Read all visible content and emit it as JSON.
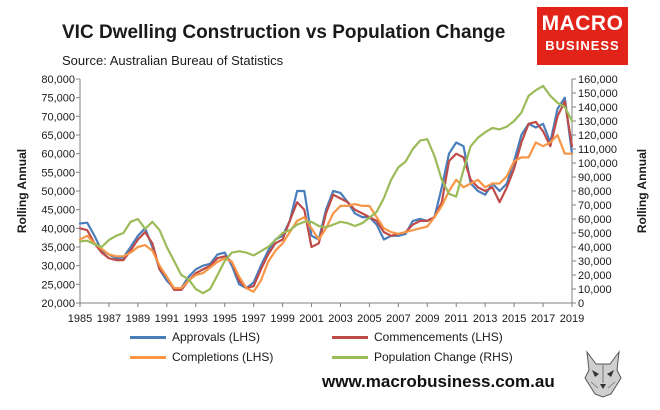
{
  "header": {
    "title": "VIC Dwelling Construction vs Population Change",
    "subtitle": "Source: Australian Bureau of Statistics"
  },
  "logo": {
    "line1": "MACRO",
    "line2": "BUSINESS",
    "color": "#e2231a"
  },
  "footer": {
    "website": "www.macrobusiness.com.au",
    "icon": "wolf-icon"
  },
  "chart_data": {
    "type": "line",
    "ylabel_left": "Rolling Annual",
    "ylabel_right": "Rolling Annual",
    "ylim_left": [
      20000,
      80000
    ],
    "ylim_right": [
      0,
      160000
    ],
    "yticks_left": [
      "20,000",
      "25,000",
      "30,000",
      "35,000",
      "40,000",
      "45,000",
      "50,000",
      "55,000",
      "60,000",
      "65,000",
      "70,000",
      "75,000",
      "80,000"
    ],
    "yticks_right": [
      "0",
      "10,000",
      "20,000",
      "30,000",
      "40,000",
      "50,000",
      "60,000",
      "70,000",
      "80,000",
      "90,000",
      "100,000",
      "110,000",
      "120,000",
      "130,000",
      "140,000",
      "150,000",
      "160,000"
    ],
    "xlim": [
      1985,
      2019
    ],
    "xticks": [
      "1985",
      "1987",
      "1989",
      "1991",
      "1993",
      "1995",
      "1997",
      "1999",
      "2001",
      "2003",
      "2005",
      "2007",
      "2009",
      "2011",
      "2013",
      "2015",
      "2017",
      "2019"
    ],
    "grid": false,
    "legend_position": "bottom",
    "series": [
      {
        "name": "Approvals (LHS)",
        "axis": "left",
        "color": "#4a7ebb",
        "x": [
          1985,
          1985.5,
          1986,
          1986.5,
          1987,
          1987.5,
          1988,
          1988.5,
          1989,
          1989.5,
          1990,
          1990.5,
          1991,
          1991.5,
          1992,
          1992.5,
          1993,
          1993.5,
          1994,
          1994.5,
          1995,
          1995.5,
          1996,
          1996.5,
          1997,
          1997.5,
          1998,
          1998.5,
          1999,
          1999.5,
          2000,
          2000.5,
          2001,
          2001.5,
          2002,
          2002.5,
          2003,
          2003.5,
          2004,
          2004.5,
          2005,
          2005.5,
          2006,
          2006.5,
          2007,
          2007.5,
          2008,
          2008.5,
          2009,
          2009.5,
          2010,
          2010.5,
          2011,
          2011.5,
          2012,
          2012.5,
          2013,
          2013.5,
          2014,
          2014.5,
          2015,
          2015.5,
          2016,
          2016.5,
          2017,
          2017.5,
          2018,
          2018.5,
          2019
        ],
        "values": [
          41300,
          41500,
          38000,
          34000,
          33000,
          32000,
          32200,
          35000,
          38000,
          40000,
          35000,
          29000,
          26000,
          24000,
          24000,
          27000,
          29000,
          30000,
          30500,
          33000,
          33500,
          30000,
          25000,
          24000,
          25500,
          30000,
          34000,
          37000,
          38000,
          42000,
          50000,
          50000,
          38000,
          37000,
          45000,
          50000,
          49500,
          47000,
          44000,
          43000,
          43000,
          41000,
          37000,
          38000,
          38000,
          38500,
          42000,
          42500,
          42000,
          43000,
          51000,
          60000,
          63000,
          62000,
          52000,
          50000,
          49000,
          52000,
          50000,
          52000,
          58000,
          65000,
          68000,
          67000,
          68000,
          63000,
          72000,
          75000,
          60000
        ]
      },
      {
        "name": "Commencements (LHS)",
        "axis": "left",
        "color": "#be4b48",
        "x": [
          1985,
          1985.5,
          1986,
          1986.5,
          1987,
          1987.5,
          1988,
          1988.5,
          1989,
          1989.5,
          1990,
          1990.5,
          1991,
          1991.5,
          1992,
          1992.5,
          1993,
          1993.5,
          1994,
          1994.5,
          1995,
          1995.5,
          1996,
          1996.5,
          1997,
          1997.5,
          1998,
          1998.5,
          1999,
          1999.5,
          2000,
          2000.5,
          2001,
          2001.5,
          2002,
          2002.5,
          2003,
          2003.5,
          2004,
          2004.5,
          2005,
          2005.5,
          2006,
          2006.5,
          2007,
          2007.5,
          2008,
          2008.5,
          2009,
          2009.5,
          2010,
          2010.5,
          2011,
          2011.5,
          2012,
          2012.5,
          2013,
          2013.5,
          2014,
          2014.5,
          2015,
          2015.5,
          2016,
          2016.5,
          2017,
          2017.5,
          2018,
          2018.5,
          2019
        ],
        "values": [
          40000,
          39500,
          36000,
          33500,
          32000,
          31500,
          31500,
          34000,
          37000,
          39000,
          36000,
          29000,
          27000,
          23500,
          23500,
          26000,
          28000,
          29000,
          30000,
          32000,
          32500,
          31000,
          26000,
          24000,
          24500,
          29000,
          33000,
          36000,
          37000,
          42000,
          47000,
          45000,
          35000,
          36000,
          44000,
          49000,
          48000,
          47000,
          45000,
          44000,
          43000,
          42000,
          39000,
          38000,
          38500,
          39000,
          41000,
          42000,
          42000,
          43000,
          47000,
          58000,
          60000,
          59000,
          53000,
          51000,
          50000,
          51000,
          47000,
          51000,
          56000,
          63000,
          68000,
          68500,
          66000,
          62000,
          70000,
          74000,
          62000
        ]
      },
      {
        "name": "Completions (LHS)",
        "axis": "left",
        "color": "#f79646",
        "x": [
          1985,
          1985.5,
          1986,
          1986.5,
          1987,
          1987.5,
          1988,
          1988.5,
          1989,
          1989.5,
          1990,
          1990.5,
          1991,
          1991.5,
          1992,
          1992.5,
          1993,
          1993.5,
          1994,
          1994.5,
          1995,
          1995.5,
          1996,
          1996.5,
          1997,
          1997.5,
          1998,
          1998.5,
          1999,
          1999.5,
          2000,
          2000.5,
          2001,
          2001.5,
          2002,
          2002.5,
          2003,
          2003.5,
          2004,
          2004.5,
          2005,
          2005.5,
          2006,
          2006.5,
          2007,
          2007.5,
          2008,
          2008.5,
          2009,
          2009.5,
          2010,
          2010.5,
          2011,
          2011.5,
          2012,
          2012.5,
          2013,
          2013.5,
          2014,
          2014.5,
          2015,
          2015.5,
          2016,
          2016.5,
          2017,
          2017.5,
          2018,
          2018.5,
          2019
        ],
        "values": [
          37000,
          38000,
          36000,
          34500,
          33000,
          32500,
          32500,
          33500,
          35000,
          35500,
          34000,
          30000,
          27000,
          24000,
          24000,
          26000,
          27500,
          28000,
          29500,
          31000,
          32000,
          31000,
          27000,
          24000,
          23000,
          26000,
          31000,
          34000,
          36000,
          39000,
          42000,
          43000,
          40000,
          37000,
          40000,
          44000,
          46000,
          46000,
          46500,
          46000,
          46000,
          43000,
          40000,
          39000,
          38500,
          39000,
          39500,
          40000,
          40500,
          43000,
          46000,
          50000,
          53000,
          51000,
          52000,
          53000,
          51000,
          52000,
          52000,
          54000,
          58000,
          59000,
          59000,
          63000,
          62000,
          63000,
          65000,
          60000,
          60000
        ]
      },
      {
        "name": "Population Change (RHS)",
        "axis": "right",
        "color": "#9bbb59",
        "x": [
          1985,
          1985.5,
          1986,
          1986.5,
          1987,
          1987.5,
          1988,
          1988.5,
          1989,
          1989.5,
          1990,
          1990.5,
          1991,
          1991.5,
          1992,
          1992.5,
          1993,
          1993.5,
          1994,
          1994.5,
          1995,
          1995.5,
          1996,
          1996.5,
          1997,
          1997.5,
          1998,
          1998.5,
          1999,
          1999.5,
          2000,
          2000.5,
          2001,
          2001.5,
          2002,
          2002.5,
          2003,
          2003.5,
          2004,
          2004.5,
          2005,
          2005.5,
          2006,
          2006.5,
          2007,
          2007.5,
          2008,
          2008.5,
          2009,
          2009.5,
          2010,
          2010.5,
          2011,
          2011.5,
          2012,
          2012.5,
          2013,
          2013.5,
          2014,
          2014.5,
          2015,
          2015.5,
          2016,
          2016.5,
          2017,
          2017.5,
          2018,
          2018.5,
          2019
        ],
        "values": [
          44000,
          44500,
          42000,
          40000,
          45000,
          48000,
          50000,
          58000,
          60000,
          53000,
          58000,
          52000,
          40000,
          30000,
          20000,
          17000,
          10000,
          7000,
          10000,
          20000,
          30000,
          36000,
          37000,
          36000,
          34000,
          37000,
          40000,
          45000,
          50000,
          52000,
          56000,
          58000,
          58000,
          55000,
          54000,
          56000,
          58000,
          57000,
          55000,
          57000,
          61000,
          65000,
          75000,
          88000,
          97000,
          101000,
          110000,
          116000,
          117000,
          105000,
          88000,
          78000,
          76000,
          95000,
          112000,
          118000,
          122000,
          125000,
          124000,
          126000,
          130000,
          136000,
          148000,
          152000,
          155000,
          148000,
          143000,
          140000,
          130000
        ]
      }
    ]
  }
}
